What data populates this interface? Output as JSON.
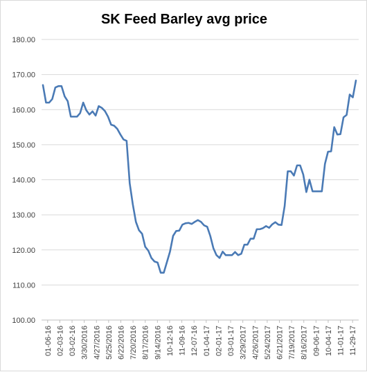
{
  "chart_data": {
    "type": "line",
    "title": "SK Feed Barley avg price",
    "xlabel": "",
    "ylabel": "",
    "ylim": [
      100,
      180
    ],
    "yticks": [
      "100.00",
      "110.00",
      "120.00",
      "130.00",
      "140.00",
      "150.00",
      "160.00",
      "170.00",
      "180.00"
    ],
    "grid": "horizontal",
    "legend": "none",
    "line_color": "#4a7ab5",
    "xtick_labels": [
      "01-06-16",
      "02-03-16",
      "03-02-16",
      "3/30/2016",
      "4/27/2016",
      "5/25/2016",
      "6/22/2016",
      "7/20/2016",
      "8/17/2016",
      "9/14/2016",
      "10-12-16",
      "11-09-16",
      "12-07-16",
      "01-04-17",
      "02-01-17",
      "03-01-17",
      "3/29/2017",
      "4/26/2017",
      "5/24/2017",
      "6/21/2017",
      "7/19/2017",
      "8/16/2017",
      "09-06-17",
      "10-04-17",
      "11-01-17",
      "11-29-17"
    ],
    "series": [
      {
        "values": [
          167.0,
          162.0,
          162.0,
          163.0,
          166.3,
          166.7,
          166.7,
          163.8,
          162.4,
          158.0,
          158.0,
          158.0,
          159.0,
          162.0,
          159.8,
          158.6,
          159.5,
          158.3,
          161.0,
          160.5,
          159.6,
          158.0,
          155.7,
          155.4,
          154.5,
          152.9,
          151.5,
          151.1,
          139.0,
          133.0,
          128.0,
          125.6,
          124.6,
          120.9,
          119.8,
          117.7,
          116.7,
          116.4,
          113.5,
          113.5,
          116.5,
          119.5,
          124.0,
          125.4,
          125.5,
          127.2,
          127.6,
          127.7,
          127.4,
          128.0,
          128.5,
          128.0,
          127.0,
          126.6,
          124.0,
          120.5,
          118.5,
          117.7,
          119.5,
          118.5,
          118.5,
          118.5,
          119.4,
          118.5,
          118.9,
          121.5,
          121.5,
          123.2,
          123.2,
          125.9,
          125.9,
          126.2,
          126.8,
          126.3,
          127.3,
          127.9,
          127.2,
          127.1,
          132.5,
          142.4,
          142.4,
          141.2,
          144.1,
          144.1,
          141.5,
          136.5,
          140.0,
          136.7,
          136.7,
          136.7,
          136.7,
          144.5,
          148.0,
          148.1,
          155.0,
          152.9,
          153.0,
          157.8,
          158.5,
          164.3,
          163.5,
          168.3
        ]
      }
    ]
  }
}
